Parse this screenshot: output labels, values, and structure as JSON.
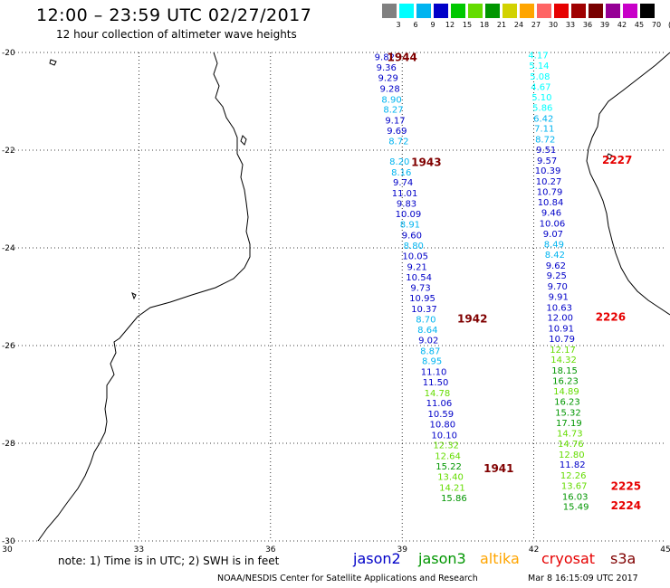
{
  "header": {
    "title": "12:00 – 23:59 UTC 02/27/2017",
    "subtitle": "12 hour collection of altimeter wave heights"
  },
  "colorscale": {
    "labels": [
      "3",
      "6",
      "9",
      "12",
      "15",
      "18",
      "21",
      "24",
      "27",
      "30",
      "33",
      "36",
      "39",
      "42",
      "45",
      "70",
      "(ft)"
    ],
    "colors": [
      "#808080",
      "#00ffff",
      "#00b4f0",
      "#0000c8",
      "#00c800",
      "#64dc00",
      "#009600",
      "#d2d200",
      "#ffa500",
      "#ff6464",
      "#e60000",
      "#a00000",
      "#780000",
      "#960096",
      "#c800c8",
      "#000000"
    ]
  },
  "axes": {
    "lat_labels": [
      "-20",
      "-22",
      "-24",
      "-26",
      "-28",
      "-30"
    ],
    "lon_labels": [
      "30",
      "33",
      "36",
      "39",
      "42",
      "45"
    ]
  },
  "tracks": [
    {
      "label": "1944",
      "label_color": "#800000",
      "label_lon": 39.0,
      "label_lat": -20.1,
      "points": [
        {
          "lon": 38.6,
          "lat": -20.08,
          "v": "9.82",
          "c": "#0000c8"
        },
        {
          "lon": 38.64,
          "lat": -20.3,
          "v": "9.36",
          "c": "#0000c8"
        },
        {
          "lon": 38.68,
          "lat": -20.51,
          "v": "9.29",
          "c": "#0000c8"
        },
        {
          "lon": 38.72,
          "lat": -20.73,
          "v": "9.28",
          "c": "#0000c8"
        },
        {
          "lon": 38.76,
          "lat": -20.95,
          "v": "8.90",
          "c": "#00b4f0"
        },
        {
          "lon": 38.8,
          "lat": -21.16,
          "v": "8.27",
          "c": "#00b4f0"
        },
        {
          "lon": 38.84,
          "lat": -21.38,
          "v": "9.17",
          "c": "#0000c8"
        },
        {
          "lon": 38.88,
          "lat": -21.59,
          "v": "9.69",
          "c": "#0000c8"
        },
        {
          "lon": 38.92,
          "lat": -21.81,
          "v": "8.72",
          "c": "#00b4f0"
        }
      ]
    },
    {
      "label": "1943",
      "label_color": "#800000",
      "label_lon": 39.55,
      "label_lat": -22.25,
      "points": [
        {
          "lon": 38.94,
          "lat": -22.22,
          "v": "8.20",
          "c": "#00b4f0"
        },
        {
          "lon": 38.98,
          "lat": -22.44,
          "v": "8.16",
          "c": "#00b4f0"
        },
        {
          "lon": 39.02,
          "lat": -22.65,
          "v": "9.74",
          "c": "#0000c8"
        },
        {
          "lon": 39.06,
          "lat": -22.87,
          "v": "11.01",
          "c": "#0000c8"
        },
        {
          "lon": 39.1,
          "lat": -23.08,
          "v": "9.83",
          "c": "#0000c8"
        },
        {
          "lon": 39.14,
          "lat": -23.3,
          "v": "10.09",
          "c": "#0000c8"
        },
        {
          "lon": 39.18,
          "lat": -23.51,
          "v": "8.91",
          "c": "#00b4f0"
        },
        {
          "lon": 39.22,
          "lat": -23.73,
          "v": "9.60",
          "c": "#0000c8"
        },
        {
          "lon": 39.26,
          "lat": -23.94,
          "v": "8.80",
          "c": "#00b4f0"
        },
        {
          "lon": 39.3,
          "lat": -24.16,
          "v": "10.05",
          "c": "#0000c8"
        },
        {
          "lon": 39.34,
          "lat": -24.38,
          "v": "9.21",
          "c": "#0000c8"
        },
        {
          "lon": 39.38,
          "lat": -24.59,
          "v": "10.54",
          "c": "#0000c8"
        },
        {
          "lon": 39.42,
          "lat": -24.81,
          "v": "9.73",
          "c": "#0000c8"
        },
        {
          "lon": 39.46,
          "lat": -25.02,
          "v": "10.95",
          "c": "#0000c8"
        },
        {
          "lon": 39.5,
          "lat": -25.24,
          "v": "10.37",
          "c": "#0000c8"
        },
        {
          "lon": 39.54,
          "lat": -25.45,
          "v": "8.70",
          "c": "#00b4f0"
        },
        {
          "lon": 39.58,
          "lat": -25.67,
          "v": "8.64",
          "c": "#00b4f0"
        }
      ]
    },
    {
      "label": "1942",
      "label_color": "#800000",
      "label_lon": 40.6,
      "label_lat": -25.45,
      "points": [
        {
          "lon": 39.6,
          "lat": -25.88,
          "v": "9.02",
          "c": "#0000c8"
        },
        {
          "lon": 39.64,
          "lat": -26.1,
          "v": "8.87",
          "c": "#00b4f0"
        },
        {
          "lon": 39.68,
          "lat": -26.31,
          "v": "8.95",
          "c": "#00b4f0"
        },
        {
          "lon": 39.72,
          "lat": -26.53,
          "v": "11.10",
          "c": "#0000c8"
        },
        {
          "lon": 39.76,
          "lat": -26.74,
          "v": "11.50",
          "c": "#0000c8"
        },
        {
          "lon": 39.8,
          "lat": -26.96,
          "v": "14.78",
          "c": "#64dc00"
        },
        {
          "lon": 39.84,
          "lat": -27.17,
          "v": "11.06",
          "c": "#0000c8"
        },
        {
          "lon": 39.88,
          "lat": -27.39,
          "v": "10.59",
          "c": "#0000c8"
        },
        {
          "lon": 39.92,
          "lat": -27.6,
          "v": "10.80",
          "c": "#0000c8"
        },
        {
          "lon": 39.96,
          "lat": -27.82,
          "v": "10.10",
          "c": "#0000c8"
        },
        {
          "lon": 40.0,
          "lat": -28.03,
          "v": "12.32",
          "c": "#64dc00"
        },
        {
          "lon": 40.04,
          "lat": -28.25,
          "v": "12.64",
          "c": "#64dc00"
        }
      ]
    },
    {
      "label": "1941",
      "label_color": "#800000",
      "label_lon": 41.2,
      "label_lat": -28.52,
      "points": [
        {
          "lon": 40.06,
          "lat": -28.46,
          "v": "15.22",
          "c": "#009600"
        },
        {
          "lon": 40.1,
          "lat": -28.68,
          "v": "13.40",
          "c": "#64dc00"
        },
        {
          "lon": 40.14,
          "lat": -28.9,
          "v": "14.21",
          "c": "#64dc00"
        },
        {
          "lon": 40.18,
          "lat": -29.11,
          "v": "15.86",
          "c": "#009600"
        }
      ]
    },
    {
      "label": "2227",
      "label_color": "#e60000",
      "label_lon": 43.9,
      "label_lat": -22.2,
      "points": [
        {
          "lon": 42.1,
          "lat": -20.05,
          "v": "4.17",
          "c": "#00ffff"
        },
        {
          "lon": 42.12,
          "lat": -20.26,
          "v": "5.14",
          "c": "#00ffff"
        },
        {
          "lon": 42.14,
          "lat": -20.48,
          "v": "5.08",
          "c": "#00ffff"
        },
        {
          "lon": 42.16,
          "lat": -20.69,
          "v": "4.67",
          "c": "#00ffff"
        },
        {
          "lon": 42.18,
          "lat": -20.91,
          "v": "5.10",
          "c": "#00ffff"
        },
        {
          "lon": 42.2,
          "lat": -21.12,
          "v": "5.86",
          "c": "#00ffff"
        },
        {
          "lon": 42.22,
          "lat": -21.34,
          "v": "6.42",
          "c": "#00b4f0"
        },
        {
          "lon": 42.24,
          "lat": -21.55,
          "v": "7.11",
          "c": "#00b4f0"
        },
        {
          "lon": 42.26,
          "lat": -21.77,
          "v": "8.72",
          "c": "#00b4f0"
        },
        {
          "lon": 42.28,
          "lat": -21.98,
          "v": "9.51",
          "c": "#0000c8"
        },
        {
          "lon": 42.3,
          "lat": -22.2,
          "v": "9.57",
          "c": "#0000c8"
        },
        {
          "lon": 42.32,
          "lat": -22.41,
          "v": "10.39",
          "c": "#0000c8"
        },
        {
          "lon": 42.34,
          "lat": -22.63,
          "v": "10.27",
          "c": "#0000c8"
        },
        {
          "lon": 42.36,
          "lat": -22.84,
          "v": "10.79",
          "c": "#0000c8"
        },
        {
          "lon": 42.38,
          "lat": -23.06,
          "v": "10.84",
          "c": "#0000c8"
        },
        {
          "lon": 42.4,
          "lat": -23.27,
          "v": "9.46",
          "c": "#0000c8"
        },
        {
          "lon": 42.42,
          "lat": -23.49,
          "v": "10.06",
          "c": "#0000c8"
        },
        {
          "lon": 42.44,
          "lat": -23.7,
          "v": "9.07",
          "c": "#0000c8"
        },
        {
          "lon": 42.46,
          "lat": -23.92,
          "v": "8.49",
          "c": "#00b4f0"
        },
        {
          "lon": 42.48,
          "lat": -24.13,
          "v": "8.42",
          "c": "#00b4f0"
        },
        {
          "lon": 42.5,
          "lat": -24.35,
          "v": "9.62",
          "c": "#0000c8"
        },
        {
          "lon": 42.52,
          "lat": -24.56,
          "v": "9.25",
          "c": "#0000c8"
        },
        {
          "lon": 42.54,
          "lat": -24.78,
          "v": "9.70",
          "c": "#0000c8"
        },
        {
          "lon": 42.56,
          "lat": -24.99,
          "v": "9.91",
          "c": "#0000c8"
        },
        {
          "lon": 42.58,
          "lat": -25.21,
          "v": "10.63",
          "c": "#0000c8"
        }
      ]
    },
    {
      "label": "2226",
      "label_color": "#e60000",
      "label_lon": 43.75,
      "label_lat": -25.42,
      "points": [
        {
          "lon": 42.6,
          "lat": -25.42,
          "v": "12.00",
          "c": "#0000c8"
        },
        {
          "lon": 42.62,
          "lat": -25.64,
          "v": "10.91",
          "c": "#0000c8"
        },
        {
          "lon": 42.64,
          "lat": -25.85,
          "v": "10.79",
          "c": "#0000c8"
        },
        {
          "lon": 42.66,
          "lat": -26.07,
          "v": "12.17",
          "c": "#64dc00"
        },
        {
          "lon": 42.68,
          "lat": -26.28,
          "v": "14.32",
          "c": "#64dc00"
        },
        {
          "lon": 42.7,
          "lat": -26.5,
          "v": "18.15",
          "c": "#009600"
        },
        {
          "lon": 42.72,
          "lat": -26.71,
          "v": "16.23",
          "c": "#009600"
        },
        {
          "lon": 42.74,
          "lat": -26.93,
          "v": "14.89",
          "c": "#64dc00"
        },
        {
          "lon": 42.76,
          "lat": -27.14,
          "v": "16.23",
          "c": "#009600"
        },
        {
          "lon": 42.78,
          "lat": -27.36,
          "v": "15.32",
          "c": "#009600"
        },
        {
          "lon": 42.8,
          "lat": -27.57,
          "v": "17.19",
          "c": "#009600"
        },
        {
          "lon": 42.82,
          "lat": -27.79,
          "v": "14.73",
          "c": "#64dc00"
        },
        {
          "lon": 42.84,
          "lat": -28.0,
          "v": "14.76",
          "c": "#64dc00"
        },
        {
          "lon": 42.86,
          "lat": -28.22,
          "v": "12.80",
          "c": "#64dc00"
        },
        {
          "lon": 42.88,
          "lat": -28.43,
          "v": "11.82",
          "c": "#0000c8"
        },
        {
          "lon": 42.9,
          "lat": -28.65,
          "v": "12.26",
          "c": "#64dc00"
        },
        {
          "lon": 42.92,
          "lat": -28.86,
          "v": "13.67",
          "c": "#64dc00"
        }
      ]
    },
    {
      "label": "2225",
      "label_color": "#e60000",
      "label_lon": 44.1,
      "label_lat": -28.88,
      "points": [
        {
          "lon": 42.94,
          "lat": -29.08,
          "v": "16.03",
          "c": "#009600"
        }
      ]
    },
    {
      "label": "2224",
      "label_color": "#e60000",
      "label_lon": 44.1,
      "label_lat": -29.28,
      "points": [
        {
          "lon": 42.96,
          "lat": -29.29,
          "v": "15.49",
          "c": "#009600"
        }
      ]
    }
  ],
  "footer": {
    "note": "note: 1) Time is in UTC; 2) SWH is in feet",
    "satellites": [
      {
        "name": "jason2",
        "color": "#0000c8"
      },
      {
        "name": "jason3",
        "color": "#009600"
      },
      {
        "name": "altika",
        "color": "#ffa500"
      },
      {
        "name": "cryosat",
        "color": "#e60000"
      },
      {
        "name": "s3a",
        "color": "#800000"
      }
    ],
    "credit": "NOAA/NESDIS Center for Satellite Applications and Research",
    "timestamp": "Mar  8 16:15:09 UTC 2017"
  }
}
